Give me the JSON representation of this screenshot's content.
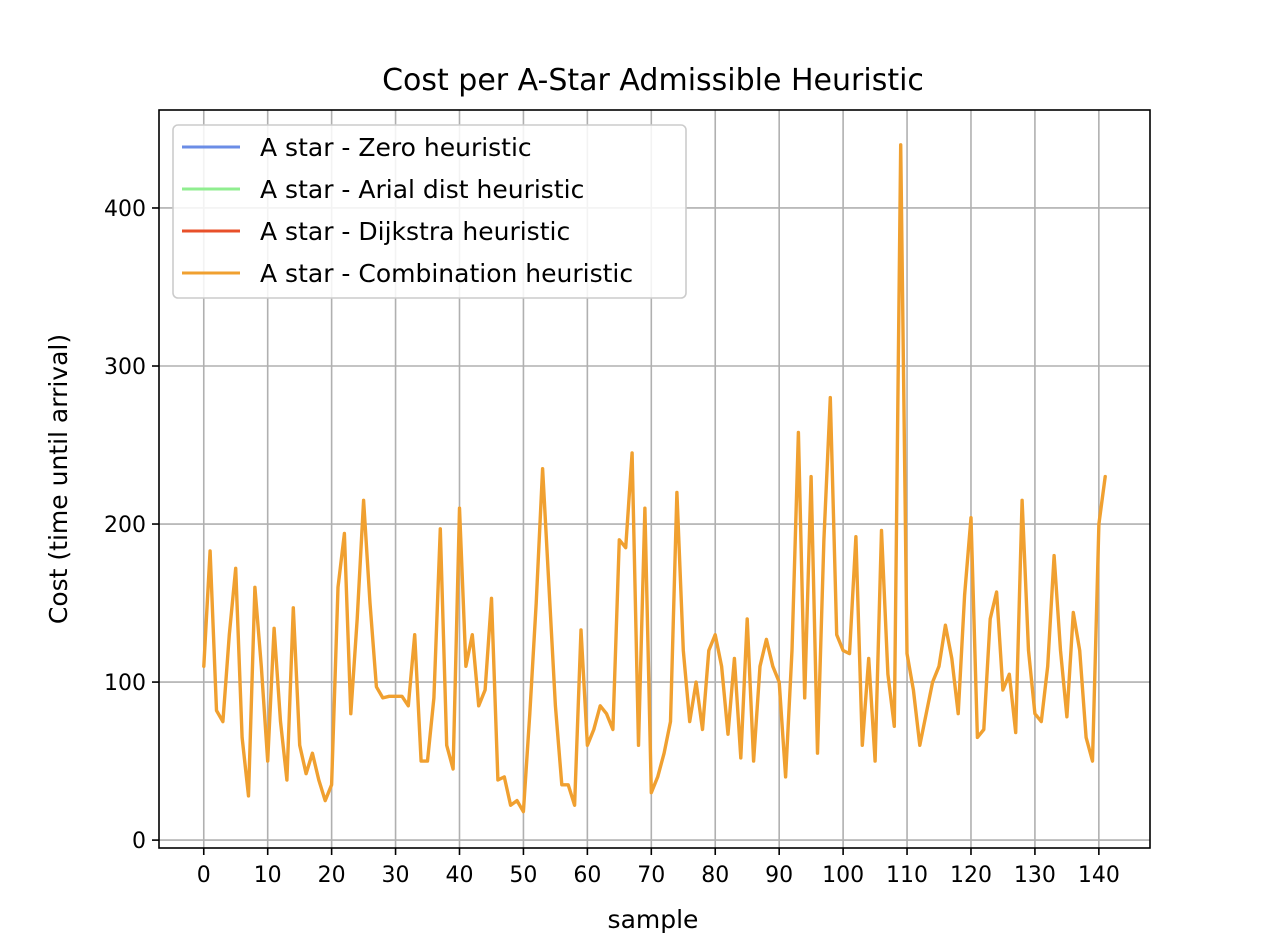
{
  "chart_data": {
    "type": "line",
    "title": "Cost per A-Star Admissible Heuristic",
    "xlabel": "sample",
    "ylabel": "Cost (time until arrival)",
    "xlim": [
      -7,
      148
    ],
    "ylim": [
      -5,
      462
    ],
    "xticks": [
      0,
      10,
      20,
      30,
      40,
      50,
      60,
      70,
      80,
      90,
      100,
      110,
      120,
      130,
      140
    ],
    "yticks": [
      0,
      100,
      200,
      300,
      400
    ],
    "grid": true,
    "legend_position": "top-left",
    "series": [
      {
        "name": "A star - Zero heuristic",
        "color": "#6b8de6",
        "line_width": 2.4
      },
      {
        "name": "A star - Arial dist heuristic",
        "color": "#90ee90",
        "line_width": 2.4
      },
      {
        "name": "A star - Dijkstra heuristic",
        "color": "#e8502a",
        "line_width": 2.4
      },
      {
        "name": "A star - Combination heuristic",
        "color": "#f0a030",
        "line_width": 3.4
      }
    ],
    "x": [
      0,
      1,
      2,
      3,
      4,
      5,
      6,
      7,
      8,
      9,
      10,
      11,
      12,
      13,
      14,
      15,
      16,
      17,
      18,
      19,
      20,
      21,
      22,
      23,
      24,
      25,
      26,
      27,
      28,
      29,
      30,
      31,
      32,
      33,
      34,
      35,
      36,
      37,
      38,
      39,
      40,
      41,
      42,
      43,
      44,
      45,
      46,
      47,
      48,
      49,
      50,
      51,
      52,
      53,
      54,
      55,
      56,
      57,
      58,
      59,
      60,
      61,
      62,
      63,
      64,
      65,
      66,
      67,
      68,
      69,
      70,
      71,
      72,
      73,
      74,
      75,
      76,
      77,
      78,
      79,
      80,
      81,
      82,
      83,
      84,
      85,
      86,
      87,
      88,
      89,
      90,
      91,
      92,
      93,
      94,
      95,
      96,
      97,
      98,
      99,
      100,
      101,
      102,
      103,
      104,
      105,
      106,
      107,
      108,
      109,
      110,
      111,
      112,
      113,
      114,
      115,
      116,
      117,
      118,
      119,
      120,
      121,
      122,
      123,
      124,
      125,
      126,
      127,
      128,
      129,
      130,
      131,
      132,
      133,
      134,
      135,
      136,
      137,
      138,
      139,
      140,
      141
    ],
    "values": [
      110,
      183,
      82,
      75,
      130,
      172,
      65,
      28,
      160,
      110,
      50,
      134,
      75,
      38,
      147,
      60,
      42,
      55,
      38,
      25,
      35,
      160,
      194,
      80,
      140,
      215,
      150,
      97,
      90,
      91,
      91,
      91,
      85,
      130,
      50,
      50,
      90,
      197,
      60,
      45,
      210,
      110,
      130,
      85,
      95,
      153,
      38,
      40,
      22,
      25,
      18,
      80,
      150,
      235,
      160,
      85,
      35,
      35,
      22,
      133,
      60,
      70,
      85,
      80,
      70,
      190,
      185,
      245,
      60,
      210,
      30,
      40,
      55,
      75,
      220,
      120,
      75,
      100,
      70,
      120,
      130,
      110,
      67,
      115,
      52,
      140,
      50,
      110,
      127,
      110,
      100,
      40,
      120,
      258,
      90,
      230,
      55,
      190,
      280,
      130,
      120,
      118,
      192,
      60,
      115,
      50,
      196,
      105,
      72,
      440,
      118,
      95,
      60,
      80,
      100,
      110,
      136,
      115,
      80,
      155,
      204,
      65,
      70,
      140,
      157,
      95,
      105,
      68,
      215,
      120,
      80,
      75,
      110,
      180,
      120,
      78,
      144,
      120,
      65,
      50,
      200,
      230
    ]
  }
}
